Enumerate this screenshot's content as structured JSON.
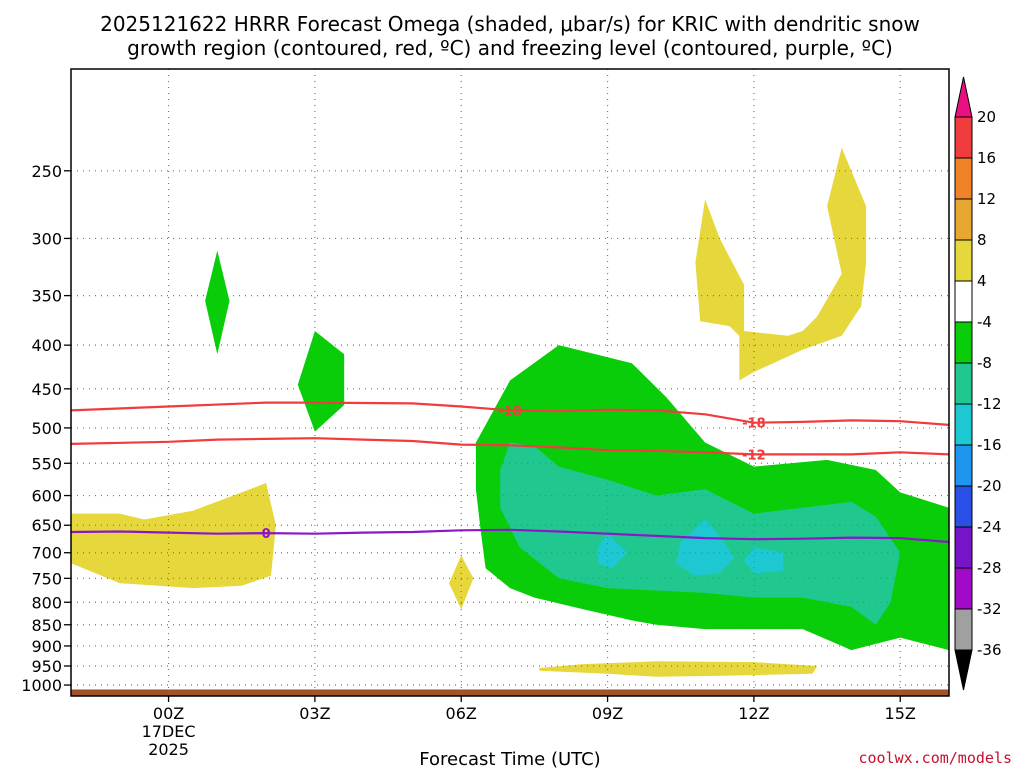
{
  "title": {
    "line1": "2025121622 HRRR Forecast Omega (shaded, μbar/s) for KRIC with dendritic snow",
    "line2": "growth region (contoured, red, ºC) and freezing level (contoured, purple, ºC)"
  },
  "credit": "coolwx.com/models",
  "chart_data": {
    "type": "heatmap",
    "subtype": "time-height cross section",
    "xlabel": "Forecast Time (UTC)",
    "ylabel": "",
    "xlim": [
      -2.0,
      16.0
    ],
    "ylim": [
      1030,
      190
    ],
    "x_ticks": [
      {
        "value": 0,
        "label": "00Z",
        "sub1": "17DEC",
        "sub2": "2025"
      },
      {
        "value": 3,
        "label": "03Z"
      },
      {
        "value": 6,
        "label": "06Z"
      },
      {
        "value": 9,
        "label": "09Z"
      },
      {
        "value": 12,
        "label": "12Z"
      },
      {
        "value": 15,
        "label": "15Z"
      }
    ],
    "y_ticks": [
      250,
      300,
      350,
      400,
      450,
      500,
      550,
      600,
      650,
      700,
      750,
      800,
      850,
      900,
      950,
      1000
    ],
    "colorbar": {
      "levels": [
        "20",
        "16",
        "12",
        "8",
        "4",
        "-4",
        "-8",
        "-12",
        "-16",
        "-20",
        "-24",
        "-28",
        "-32",
        "-36"
      ],
      "colors": [
        "#e8117f",
        "#f03c3c",
        "#f08228",
        "#e8a632",
        "#e6d83c",
        "#ffffff",
        "#0acd0a",
        "#20c890",
        "#1ec8d2",
        "#1e96f0",
        "#2850e6",
        "#7814c8",
        "#a00ac8",
        "#a0a0a0",
        "#000000"
      ]
    },
    "fills": [
      {
        "level": "-4 to -8",
        "color": "#0acd0a",
        "points": [
          [
            1.0,
            310
          ],
          [
            1.25,
            355
          ],
          [
            1.0,
            410
          ],
          [
            0.75,
            355
          ]
        ]
      },
      {
        "level": "-4 to -8",
        "color": "#0acd0a",
        "points": [
          [
            3.0,
            385
          ],
          [
            3.6,
            410
          ],
          [
            3.6,
            470
          ],
          [
            3.0,
            505
          ],
          [
            2.65,
            445
          ]
        ]
      },
      {
        "level": "-4 to -8",
        "color": "#0acd0a",
        "points": [
          [
            7.0,
            440
          ],
          [
            8.0,
            400
          ],
          [
            9.5,
            420
          ],
          [
            10.2,
            460
          ],
          [
            11.0,
            520
          ],
          [
            12.0,
            555
          ],
          [
            13.5,
            545
          ],
          [
            14.5,
            560
          ],
          [
            15.0,
            595
          ],
          [
            16.0,
            620
          ],
          [
            16.0,
            910
          ],
          [
            15.0,
            880
          ],
          [
            14.0,
            910
          ],
          [
            13.0,
            860
          ],
          [
            12.0,
            860
          ],
          [
            11.0,
            860
          ],
          [
            10.0,
            850
          ],
          [
            9.5,
            840
          ],
          [
            8.5,
            815
          ],
          [
            7.5,
            790
          ],
          [
            7.0,
            770
          ],
          [
            6.5,
            730
          ],
          [
            6.4,
            660
          ],
          [
            6.3,
            590
          ],
          [
            6.3,
            520
          ]
        ]
      },
      {
        "level": "-8 to -12",
        "color": "#20c890",
        "points": [
          [
            7.0,
            520
          ],
          [
            7.5,
            525
          ],
          [
            8.0,
            555
          ],
          [
            9.0,
            575
          ],
          [
            10.0,
            600
          ],
          [
            11.0,
            590
          ],
          [
            12.0,
            630
          ],
          [
            13.0,
            620
          ],
          [
            14.0,
            610
          ],
          [
            14.5,
            635
          ],
          [
            15.0,
            700
          ],
          [
            14.8,
            800
          ],
          [
            14.5,
            850
          ],
          [
            14.0,
            810
          ],
          [
            13.0,
            790
          ],
          [
            12.0,
            790
          ],
          [
            11.0,
            780
          ],
          [
            10.0,
            775
          ],
          [
            9.0,
            770
          ],
          [
            8.0,
            750
          ],
          [
            7.2,
            690
          ],
          [
            6.8,
            620
          ],
          [
            6.8,
            560
          ]
        ]
      },
      {
        "level": "-12 to -16",
        "color": "#1ec8d2",
        "points": [
          [
            11.0,
            640
          ],
          [
            11.3,
            670
          ],
          [
            11.6,
            710
          ],
          [
            11.3,
            740
          ],
          [
            10.8,
            745
          ],
          [
            10.4,
            720
          ],
          [
            10.5,
            680
          ]
        ]
      },
      {
        "level": "-12 to -16",
        "color": "#1ec8d2",
        "points": [
          [
            9.0,
            665
          ],
          [
            9.4,
            700
          ],
          [
            9.1,
            730
          ],
          [
            8.8,
            720
          ],
          [
            8.8,
            690
          ]
        ]
      },
      {
        "level": "-12 to -16",
        "color": "#1ec8d2",
        "points": [
          [
            12.0,
            690
          ],
          [
            12.6,
            700
          ],
          [
            12.6,
            735
          ],
          [
            12.0,
            740
          ],
          [
            11.8,
            715
          ]
        ]
      },
      {
        "level": "4 to 8",
        "color": "#e6d83c",
        "points": [
          [
            -2.0,
            630
          ],
          [
            -1.0,
            630
          ],
          [
            -0.5,
            640
          ],
          [
            0.5,
            625
          ],
          [
            1.5,
            595
          ],
          [
            2.0,
            580
          ],
          [
            2.2,
            650
          ],
          [
            2.1,
            745
          ],
          [
            1.5,
            765
          ],
          [
            0.5,
            770
          ],
          [
            -1.0,
            760
          ],
          [
            -2.0,
            720
          ]
        ]
      },
      {
        "level": "4 to 8",
        "color": "#e6d83c",
        "points": [
          [
            6.0,
            705
          ],
          [
            6.25,
            750
          ],
          [
            6.0,
            815
          ],
          [
            5.75,
            760
          ]
        ]
      },
      {
        "level": "4 to 8",
        "color": "#e6d83c",
        "points": [
          [
            11.0,
            270
          ],
          [
            11.3,
            300
          ],
          [
            11.8,
            340
          ],
          [
            11.8,
            385
          ],
          [
            12.7,
            390
          ],
          [
            13.0,
            385
          ],
          [
            13.3,
            370
          ],
          [
            13.8,
            330
          ],
          [
            13.5,
            275
          ],
          [
            13.8,
            235
          ],
          [
            14.3,
            275
          ],
          [
            14.3,
            320
          ],
          [
            14.2,
            360
          ],
          [
            13.8,
            390
          ],
          [
            13.0,
            405
          ],
          [
            12.0,
            430
          ],
          [
            11.7,
            440
          ],
          [
            11.7,
            390
          ],
          [
            11.5,
            380
          ],
          [
            10.9,
            375
          ],
          [
            10.8,
            320
          ]
        ]
      },
      {
        "level": "4 to 8",
        "color": "#e6d83c",
        "points": [
          [
            7.6,
            955
          ],
          [
            8.5,
            945
          ],
          [
            10.0,
            938
          ],
          [
            12.0,
            940
          ],
          [
            13.3,
            950
          ],
          [
            13.2,
            970
          ],
          [
            11.5,
            975
          ],
          [
            10.0,
            978
          ],
          [
            9.0,
            970
          ],
          [
            7.6,
            962
          ]
        ]
      }
    ],
    "contours": [
      {
        "name": "-18C isotherm",
        "value": -18,
        "color": "#f03c3c",
        "label": "-18",
        "label_positions": [
          7.0,
          12.0
        ],
        "points": [
          [
            -2,
            477
          ],
          [
            0,
            472
          ],
          [
            2,
            467
          ],
          [
            3,
            467
          ],
          [
            5,
            468
          ],
          [
            6,
            472
          ],
          [
            7,
            477
          ],
          [
            8,
            478
          ],
          [
            9,
            476
          ],
          [
            10,
            477
          ],
          [
            11,
            482
          ],
          [
            12,
            493
          ],
          [
            13,
            492
          ],
          [
            14,
            490
          ],
          [
            15,
            491
          ],
          [
            16,
            496
          ]
        ]
      },
      {
        "name": "-12C isotherm",
        "value": -12,
        "color": "#f03c3c",
        "label": "-12",
        "label_positions": [
          12.0
        ],
        "points": [
          [
            -2,
            522
          ],
          [
            0,
            519
          ],
          [
            1,
            516
          ],
          [
            2,
            515
          ],
          [
            3,
            514
          ],
          [
            4,
            516
          ],
          [
            5,
            518
          ],
          [
            6,
            523
          ],
          [
            7,
            524
          ],
          [
            8,
            527
          ],
          [
            9,
            531
          ],
          [
            10,
            532
          ],
          [
            11,
            534
          ],
          [
            12,
            537
          ],
          [
            13,
            537
          ],
          [
            14,
            537
          ],
          [
            15,
            534
          ],
          [
            16,
            537
          ]
        ]
      },
      {
        "name": "Freezing level 0C",
        "value": 0,
        "color": "#8a18c8",
        "label": "0",
        "label_positions": [
          2.0
        ],
        "points": [
          [
            -2,
            662
          ],
          [
            -1,
            661
          ],
          [
            0,
            663
          ],
          [
            1,
            665
          ],
          [
            2,
            664
          ],
          [
            3,
            665
          ],
          [
            4,
            663
          ],
          [
            5,
            662
          ],
          [
            6,
            659
          ],
          [
            7,
            658
          ],
          [
            8,
            661
          ],
          [
            9,
            665
          ],
          [
            10,
            669
          ],
          [
            11,
            673
          ],
          [
            12,
            675
          ],
          [
            13,
            674
          ],
          [
            14,
            672
          ],
          [
            15,
            673
          ],
          [
            16,
            680
          ]
        ]
      }
    ],
    "ground": {
      "color": "#a0522d",
      "pressure_top": 1012
    }
  }
}
